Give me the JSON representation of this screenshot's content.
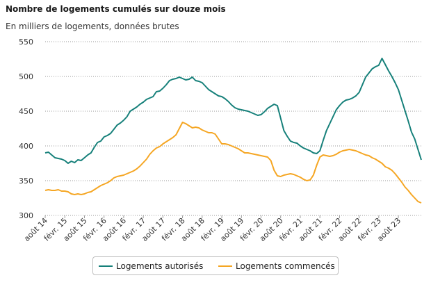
{
  "chart_data": {
    "type": "line",
    "title": "Nombre de logements cumulés sur douze mois",
    "subtitle": "En milliers de logements, données brutes",
    "xlabel": "",
    "ylabel": "",
    "ylim": [
      300,
      550
    ],
    "yticks": [
      300,
      350,
      400,
      450,
      500,
      550
    ],
    "xticks": [
      "août 14",
      "févr. 15",
      "août 15",
      "févr. 16",
      "août 16",
      "févr. 17",
      "août 17",
      "févr. 18",
      "août 18",
      "févr. 19",
      "août 19",
      "févr. 20",
      "août 20",
      "févr. 21",
      "août 21",
      "févr. 22",
      "août 22",
      "févr. 23",
      "août 23"
    ],
    "grid": "horizontal dotted",
    "legend_position": "bottom",
    "x_start": "2014-08",
    "x_end": "2023-08",
    "series": [
      {
        "name": "Logements autorisés",
        "color": "#16807a",
        "values": [
          390,
          391,
          387,
          383,
          382,
          381,
          379,
          375,
          378,
          376,
          380,
          379,
          383,
          387,
          390,
          398,
          405,
          407,
          413,
          415,
          418,
          424,
          430,
          433,
          437,
          442,
          450,
          453,
          456,
          460,
          463,
          467,
          469,
          471,
          478,
          479,
          483,
          488,
          494,
          496,
          497,
          499,
          497,
          495,
          496,
          499,
          494,
          493,
          491,
          486,
          481,
          478,
          475,
          472,
          471,
          468,
          464,
          459,
          455,
          453,
          452,
          451,
          450,
          448,
          446,
          444,
          445,
          449,
          454,
          457,
          460,
          458,
          440,
          422,
          414,
          407,
          405,
          404,
          400,
          397,
          395,
          393,
          390,
          389,
          393,
          408,
          422,
          432,
          442,
          452,
          458,
          463,
          466,
          467,
          469,
          472,
          477,
          488,
          499,
          505,
          511,
          514,
          516,
          526,
          517,
          508,
          500,
          491,
          481,
          466,
          451,
          436,
          420,
          410,
          395,
          380
        ]
      },
      {
        "name": "Logements commencés",
        "color": "#f5a623",
        "values": [
          336,
          337,
          336,
          336,
          337,
          335,
          335,
          334,
          331,
          330,
          331,
          330,
          331,
          333,
          334,
          337,
          340,
          343,
          345,
          347,
          350,
          354,
          356,
          357,
          358,
          360,
          362,
          364,
          367,
          371,
          376,
          381,
          388,
          393,
          397,
          399,
          403,
          406,
          409,
          412,
          416,
          425,
          434,
          432,
          429,
          426,
          427,
          426,
          423,
          421,
          419,
          419,
          417,
          410,
          403,
          403,
          402,
          400,
          398,
          396,
          393,
          390,
          390,
          389,
          388,
          387,
          386,
          385,
          384,
          379,
          365,
          357,
          356,
          358,
          359,
          360,
          359,
          357,
          355,
          352,
          350,
          351,
          358,
          372,
          384,
          387,
          386,
          385,
          386,
          388,
          391,
          393,
          394,
          395,
          394,
          393,
          391,
          389,
          387,
          386,
          383,
          381,
          378,
          375,
          370,
          368,
          365,
          360,
          354,
          348,
          341,
          336,
          330,
          325,
          320,
          318
        ]
      }
    ]
  }
}
